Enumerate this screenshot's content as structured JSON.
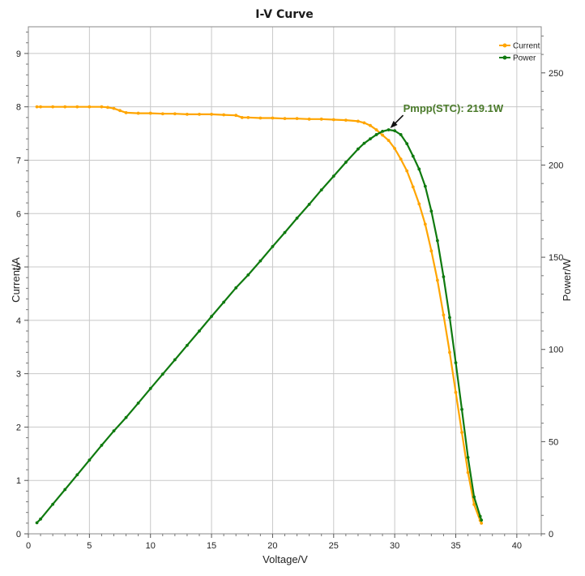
{
  "chart_data": {
    "type": "line",
    "title": "I-V Curve",
    "xlabel": "Voltage/V",
    "ylabel": "Current/A",
    "y2label": "Power/W",
    "xlim": [
      0,
      42
    ],
    "ylim": [
      0,
      9.5
    ],
    "y2lim": [
      0,
      275
    ],
    "x_ticks": [
      0,
      5,
      10,
      15,
      20,
      25,
      30,
      35,
      40
    ],
    "y_ticks": [
      0,
      1,
      2,
      3,
      4,
      5,
      6,
      7,
      8,
      9
    ],
    "y2_ticks": [
      0,
      50,
      100,
      150,
      200,
      250
    ],
    "grid": true,
    "legend_position": "top-right",
    "series": [
      {
        "name": "Current",
        "axis": "left",
        "color": "#ffa500",
        "x": [
          0.7,
          1,
          2,
          3,
          4,
          5,
          6,
          6.5,
          7,
          7.5,
          8,
          9,
          10,
          11,
          12,
          13,
          14,
          15,
          16,
          17,
          17.5,
          18,
          19,
          20,
          21,
          22,
          23,
          24,
          25,
          26,
          27,
          27.5,
          28,
          28.5,
          29,
          29.5,
          30,
          30.5,
          31,
          31.5,
          32,
          32.5,
          33,
          33.5,
          34,
          34.5,
          35,
          35.5,
          36,
          36.5,
          37,
          37.1
        ],
        "values": [
          8.0,
          8.0,
          8.0,
          8.0,
          8.0,
          8.0,
          8.0,
          7.99,
          7.97,
          7.93,
          7.89,
          7.88,
          7.88,
          7.87,
          7.87,
          7.86,
          7.86,
          7.86,
          7.85,
          7.84,
          7.8,
          7.8,
          7.79,
          7.79,
          7.78,
          7.78,
          7.77,
          7.77,
          7.76,
          7.75,
          7.73,
          7.7,
          7.65,
          7.57,
          7.47,
          7.37,
          7.22,
          7.02,
          6.8,
          6.5,
          6.18,
          5.8,
          5.3,
          4.75,
          4.1,
          3.4,
          2.65,
          1.9,
          1.15,
          0.55,
          0.25,
          0.2
        ]
      },
      {
        "name": "Power",
        "axis": "right",
        "color": "#0f7a0f",
        "x": [
          0.7,
          1,
          2,
          3,
          4,
          5,
          6,
          7,
          8,
          9,
          10,
          11,
          12,
          13,
          14,
          15,
          16,
          17,
          18,
          19,
          20,
          21,
          22,
          23,
          24,
          25,
          26,
          27,
          27.5,
          28,
          28.5,
          29,
          29.5,
          30,
          30.5,
          31,
          31.5,
          32,
          32.5,
          33,
          33.5,
          34,
          34.5,
          35,
          35.5,
          36,
          36.5,
          37,
          37.1
        ],
        "values": [
          6,
          8,
          16,
          24,
          32,
          40,
          48,
          55.8,
          63.1,
          70.9,
          78.8,
          86.6,
          94.4,
          102.2,
          110,
          117.9,
          125.6,
          133.4,
          140.4,
          148,
          155.8,
          163.4,
          171.2,
          178.7,
          186.5,
          194,
          201.5,
          208.7,
          211.8,
          214.2,
          216.5,
          218.3,
          219.1,
          218.6,
          216.5,
          211.6,
          204.8,
          197.8,
          188.5,
          175,
          159,
          139.4,
          117.3,
          92.8,
          67.5,
          41.4,
          20,
          9.5,
          7.4
        ]
      }
    ],
    "annotations": [
      {
        "text": "Pmpp(STC): 219.1W",
        "x": 29.5,
        "y2": 219.1,
        "color": "#4a7a2a"
      }
    ]
  }
}
